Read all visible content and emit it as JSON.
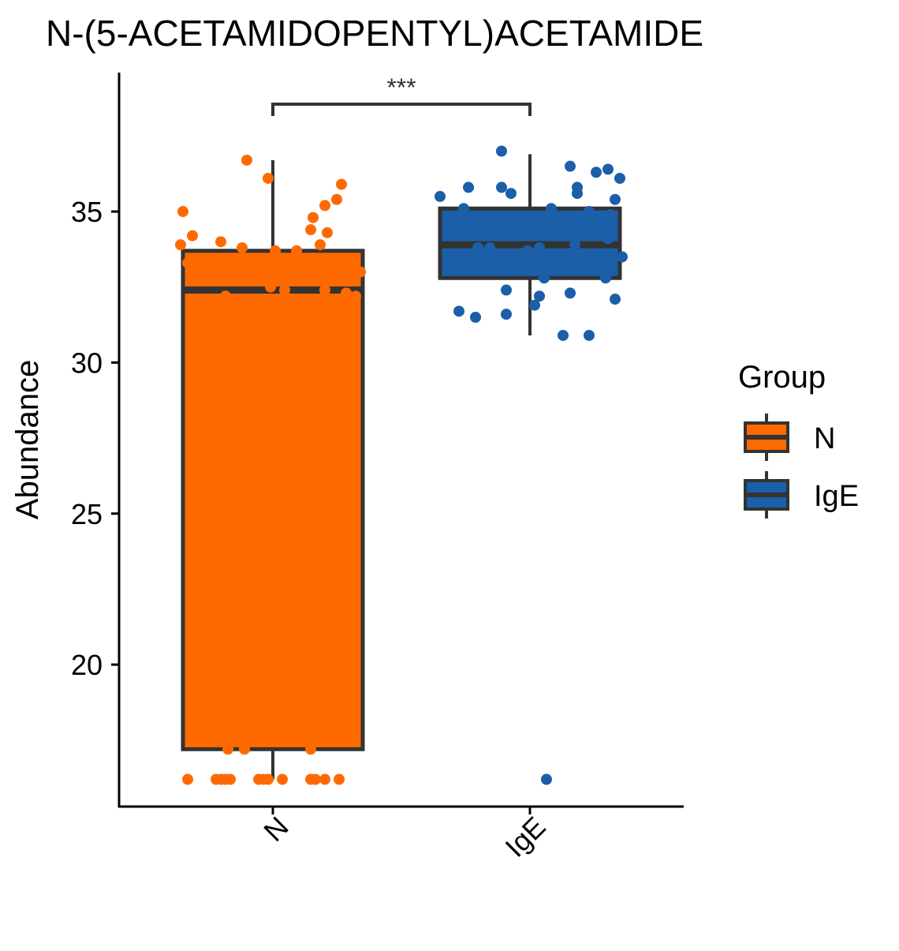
{
  "chart_data": {
    "type": "boxplot",
    "title": "N-(5-ACETAMIDOPENTYL)ACETAMIDE",
    "xlabel": "",
    "ylabel": "Abundance",
    "ylim": [
      15.3,
      39.6
    ],
    "yticks": [
      20,
      25,
      30,
      35
    ],
    "categories": [
      "N",
      "IgE"
    ],
    "legend": {
      "title": "Group",
      "position": "right"
    },
    "significance": {
      "label": "***",
      "between": [
        "N",
        "IgE"
      ]
    },
    "colors": {
      "N": "#ff6a00",
      "IgE": "#1a5fa8",
      "box_line": "#333333"
    },
    "series": [
      {
        "name": "N",
        "box": {
          "min": 16.2,
          "q1": 17.2,
          "median": 32.4,
          "q3": 33.7,
          "max": 36.7
        },
        "points": [
          [
            -0.38,
            35.0
          ],
          [
            -0.34,
            34.2
          ],
          [
            -0.22,
            34.0
          ],
          [
            -0.13,
            33.8
          ],
          [
            -0.39,
            33.9
          ],
          [
            -0.36,
            33.3
          ],
          [
            -0.33,
            32.9
          ],
          [
            -0.31,
            32.7
          ],
          [
            -0.2,
            32.2
          ],
          [
            0.01,
            33.7
          ],
          [
            0.1,
            33.7
          ],
          [
            0.2,
            33.9
          ],
          [
            0.16,
            34.4
          ],
          [
            0.17,
            34.8
          ],
          [
            0.23,
            34.3
          ],
          [
            0.22,
            35.2
          ],
          [
            0.27,
            35.4
          ],
          [
            0.29,
            35.9
          ],
          [
            -0.11,
            36.7
          ],
          [
            -0.02,
            36.1
          ],
          [
            -0.01,
            32.5
          ],
          [
            0.05,
            32.4
          ],
          [
            0.22,
            32.4
          ],
          [
            0.31,
            32.3
          ],
          [
            0.35,
            32.2
          ],
          [
            0.37,
            33.0
          ],
          [
            -0.19,
            17.2
          ],
          [
            -0.12,
            17.2
          ],
          [
            0.16,
            17.2
          ],
          [
            -0.36,
            16.2
          ],
          [
            -0.24,
            16.2
          ],
          [
            -0.22,
            16.2
          ],
          [
            -0.2,
            16.2
          ],
          [
            -0.18,
            16.2
          ],
          [
            -0.06,
            16.2
          ],
          [
            -0.04,
            16.2
          ],
          [
            -0.02,
            16.2
          ],
          [
            0.04,
            16.2
          ],
          [
            0.16,
            16.2
          ],
          [
            0.18,
            16.2
          ],
          [
            0.22,
            16.2
          ],
          [
            0.28,
            16.2
          ]
        ]
      },
      {
        "name": "IgE",
        "box": {
          "min": 30.9,
          "q1": 32.8,
          "median": 33.9,
          "q3": 35.1,
          "max": 36.9
        },
        "points": [
          [
            -0.38,
            35.5
          ],
          [
            -0.26,
            35.8
          ],
          [
            -0.28,
            35.1
          ],
          [
            -0.12,
            35.8
          ],
          [
            -0.08,
            35.6
          ],
          [
            -0.12,
            37.0
          ],
          [
            0.09,
            35.1
          ],
          [
            0.17,
            36.5
          ],
          [
            0.2,
            35.8
          ],
          [
            0.2,
            35.6
          ],
          [
            0.28,
            36.3
          ],
          [
            0.33,
            36.4
          ],
          [
            0.38,
            36.1
          ],
          [
            0.36,
            35.4
          ],
          [
            0.34,
            34.9
          ],
          [
            0.25,
            35.0
          ],
          [
            0.33,
            34.1
          ],
          [
            0.39,
            33.5
          ],
          [
            0.19,
            33.9
          ],
          [
            -0.22,
            33.8
          ],
          [
            -0.17,
            33.8
          ],
          [
            -0.01,
            33.7
          ],
          [
            0.04,
            33.8
          ],
          [
            -0.09,
            33.2
          ],
          [
            0.06,
            32.8
          ],
          [
            0.32,
            32.8
          ],
          [
            -0.1,
            32.4
          ],
          [
            0.17,
            32.3
          ],
          [
            0.04,
            32.2
          ],
          [
            0.02,
            31.9
          ],
          [
            -0.3,
            31.7
          ],
          [
            -0.23,
            31.5
          ],
          [
            -0.1,
            31.6
          ],
          [
            0.36,
            32.1
          ],
          [
            0.14,
            30.9
          ],
          [
            0.25,
            30.9
          ],
          [
            0.07,
            16.2
          ]
        ]
      }
    ]
  }
}
